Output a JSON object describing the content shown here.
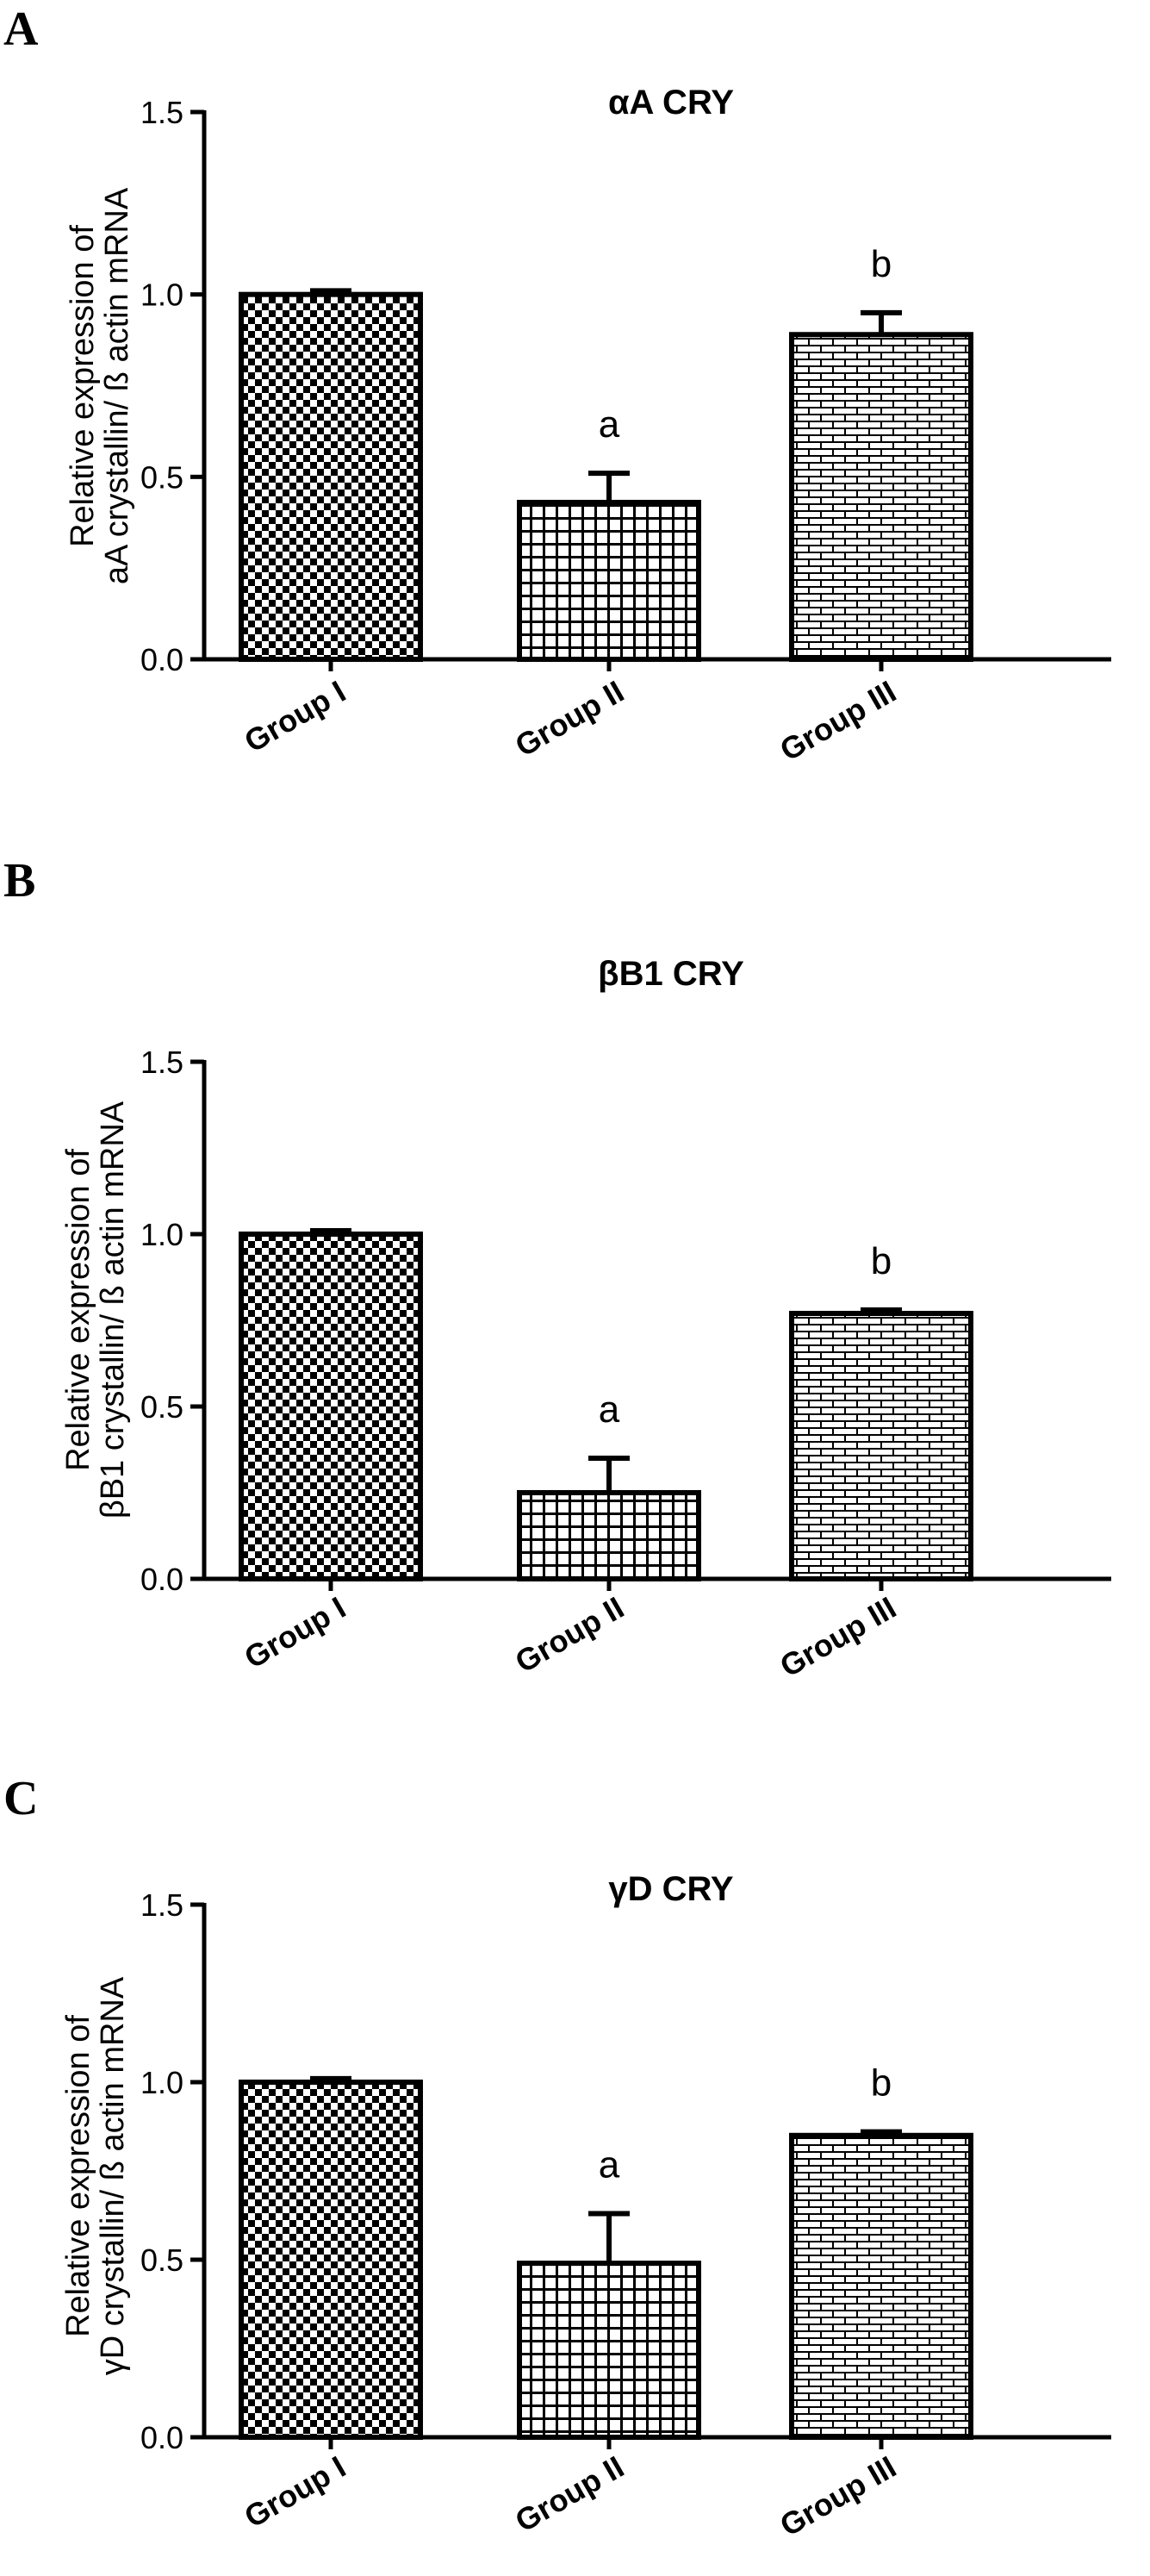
{
  "chart_data": [
    {
      "panel_label": "A",
      "type": "bar",
      "title": "αA CRY",
      "ylabel_lines": [
        "Relative expression of",
        "aA crystallin/ ß actin mRNA"
      ],
      "categories": [
        "Group I",
        "Group II",
        "Group III"
      ],
      "values": [
        1.0,
        0.43,
        0.89
      ],
      "errors": [
        0.01,
        0.08,
        0.06
      ],
      "significance": [
        "",
        "a",
        "b"
      ],
      "patterns": [
        "checker",
        "grid",
        "brick"
      ],
      "ylim": [
        0,
        1.5
      ],
      "yticks": [
        "0.0",
        "0.5",
        "1.0",
        "1.5"
      ],
      "ytick_values": [
        0,
        0.5,
        1.0,
        1.5
      ]
    },
    {
      "panel_label": "B",
      "type": "bar",
      "title": "βB1 CRY",
      "ylabel_lines": [
        "Relative expression of",
        "βB1 crystallin/ ß actin mRNA"
      ],
      "categories": [
        "Group I",
        "Group II",
        "Group III"
      ],
      "values": [
        1.0,
        0.25,
        0.77
      ],
      "errors": [
        0.01,
        0.1,
        0.01
      ],
      "significance": [
        "",
        "a",
        "b"
      ],
      "patterns": [
        "checker",
        "grid",
        "brick"
      ],
      "ylim": [
        0,
        1.5
      ],
      "yticks": [
        "0.0",
        "0.5",
        "1.0",
        "1.5"
      ],
      "ytick_values": [
        0,
        0.5,
        1.0,
        1.5
      ]
    },
    {
      "panel_label": "C",
      "type": "bar",
      "title": "γD CRY",
      "ylabel_lines": [
        "Relative expression of",
        "γD crystallin/ ß actin mRNA"
      ],
      "categories": [
        "Group I",
        "Group II",
        "Group III"
      ],
      "values": [
        1.0,
        0.49,
        0.85
      ],
      "errors": [
        0.01,
        0.14,
        0.01
      ],
      "significance": [
        "",
        "a",
        "b"
      ],
      "patterns": [
        "checker",
        "grid",
        "brick"
      ],
      "ylim": [
        0,
        1.5
      ],
      "yticks": [
        "0.0",
        "0.5",
        "1.0",
        "1.5"
      ],
      "ytick_values": [
        0,
        0.5,
        1.0,
        1.5
      ]
    }
  ]
}
